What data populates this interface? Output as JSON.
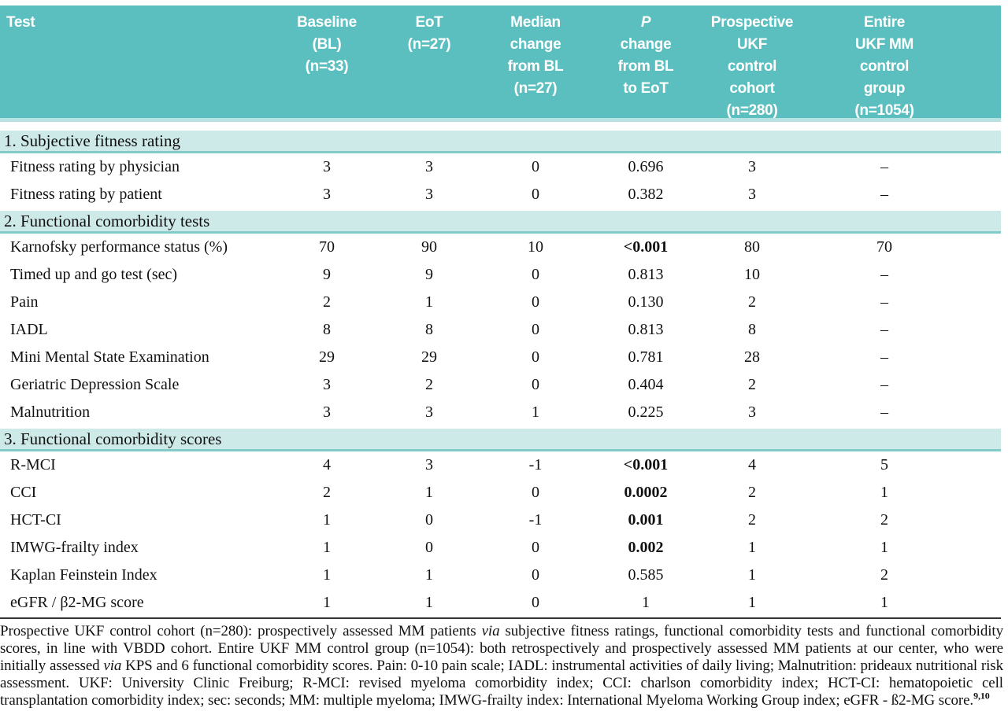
{
  "colors": {
    "header_teal": "#5cbfbf",
    "header_edge": "#b8e2e1",
    "section_band": "#cde9e8",
    "section_border": "#82cbc9",
    "bottom_rule": "#333333"
  },
  "table": {
    "header": [
      {
        "text": "Test"
      },
      {
        "text": "Baseline\n(BL)\n(n=33)"
      },
      {
        "text": "EoT\n(n=27)"
      },
      {
        "text": "Median\nchange\nfrom BL\n(n=27)"
      },
      {
        "text": "P\nchange\nfrom BL\nto EoT",
        "italic_first_line": true
      },
      {
        "text": "Prospective\nUKF\ncontrol\ncohort\n(n=280)"
      },
      {
        "text": "Entire\nUKF MM\ncontrol\ngroup\n(n=1054)"
      }
    ],
    "sections": [
      {
        "title": "1. Subjective fitness rating",
        "rows": [
          {
            "label": "Fitness rating by physician",
            "values": [
              "3",
              "3",
              "0",
              "0.696",
              "3",
              "–"
            ],
            "p_bold": false
          },
          {
            "label": "Fitness rating by patient",
            "values": [
              "3",
              "3",
              "0",
              "0.382",
              "3",
              "–"
            ],
            "p_bold": false
          }
        ]
      },
      {
        "title": "2. Functional comorbidity tests",
        "rows": [
          {
            "label": "Karnofsky performance status (%)",
            "values": [
              "70",
              "90",
              "10",
              "<0.001",
              "80",
              "70"
            ],
            "p_bold": true
          },
          {
            "label": "Timed up and go test (sec)",
            "values": [
              "9",
              "9",
              "0",
              "0.813",
              "10",
              "–"
            ],
            "p_bold": false
          },
          {
            "label": "Pain",
            "values": [
              "2",
              "1",
              "0",
              "0.130",
              "2",
              "–"
            ],
            "p_bold": false
          },
          {
            "label": "IADL",
            "values": [
              "8",
              "8",
              "0",
              "0.813",
              "8",
              "–"
            ],
            "p_bold": false
          },
          {
            "label": "Mini Mental State Examination",
            "values": [
              "29",
              "29",
              "0",
              "0.781",
              "28",
              "–"
            ],
            "p_bold": false
          },
          {
            "label": "Geriatric Depression Scale",
            "values": [
              "3",
              "2",
              "0",
              "0.404",
              "2",
              "–"
            ],
            "p_bold": false
          },
          {
            "label": "Malnutrition",
            "values": [
              "3",
              "3",
              "1",
              "0.225",
              "3",
              "–"
            ],
            "p_bold": false
          }
        ]
      },
      {
        "title": "3. Functional comorbidity scores",
        "rows": [
          {
            "label": "R-MCI",
            "values": [
              "4",
              "3",
              "-1",
              "<0.001",
              "4",
              "5"
            ],
            "p_bold": true
          },
          {
            "label": "CCI",
            "values": [
              "2",
              "1",
              "0",
              "0.0002",
              "2",
              "1"
            ],
            "p_bold": true
          },
          {
            "label": "HCT-CI",
            "values": [
              "1",
              "0",
              "-1",
              "0.001",
              "2",
              "2"
            ],
            "p_bold": true
          },
          {
            "label": "IMWG-frailty index",
            "values": [
              "1",
              "0",
              "0",
              "0.002",
              "1",
              "1"
            ],
            "p_bold": true
          },
          {
            "label": "Kaplan Feinstein Index",
            "values": [
              "1",
              "1",
              "0",
              "0.585",
              "1",
              "2"
            ],
            "p_bold": false
          },
          {
            "label": "eGFR / β2-MG score",
            "values": [
              "1",
              "1",
              "0",
              "1",
              "1",
              "1"
            ],
            "p_bold": false
          }
        ]
      }
    ]
  },
  "footnote": {
    "segments": [
      {
        "text": "Prospective UKF control cohort (n=280): prospectively assessed MM patients ",
        "style": "normal"
      },
      {
        "text": "via",
        "style": "italic"
      },
      {
        "text": " subjective fitness ratings, functional comorbidity tests and functional comorbidity scores, in line with VBDD cohort. Entire UKF MM control group (n=1054): both retrospectively and prospectively assessed MM patients at our center, who were initially assessed ",
        "style": "normal"
      },
      {
        "text": "via",
        "style": "italic"
      },
      {
        "text": " KPS and 6 functional comorbidity scores. Pain: 0-10 pain scale; IADL: instrumental activities of daily living; Malnutrition: prideaux nutritional risk assessment. UKF: University Clinic Freiburg; R-MCI: revised myeloma comorbidity index; CCI: charlson comorbidity index; HCT-CI: hematopoietic cell transplantation comorbidity index; sec: seconds; MM: multiple myeloma; IMWG-frailty index: International Myeloma Working Group index; eGFR - ß2-MG score.",
        "style": "normal"
      },
      {
        "text": "9,10",
        "style": "sup"
      }
    ]
  }
}
